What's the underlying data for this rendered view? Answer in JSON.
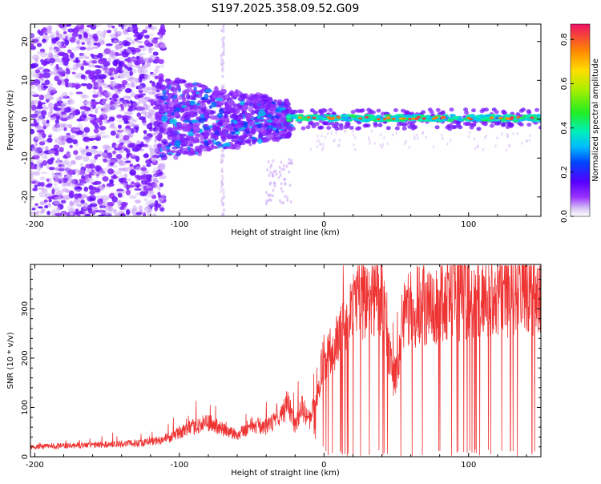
{
  "chart_data": [
    {
      "type": "heatmap",
      "title": "S197.2025.358.09.52.G09",
      "xlabel": "Height of straight line (km)",
      "ylabel": "Frequency (Hz)",
      "xlim": [
        -203,
        150
      ],
      "ylim": [
        -25,
        24.5
      ],
      "x_ticks": [
        -200,
        -100,
        0,
        100
      ],
      "y_ticks": [
        -20,
        -10,
        0,
        10,
        20
      ],
      "x_tick_labels": [
        "-200",
        "-100",
        "0",
        "100"
      ],
      "y_tick_labels": [
        "-20",
        "-10",
        "0",
        "10",
        "20"
      ],
      "colorbar": {
        "label": "Normalized spectral amplitude",
        "range": [
          0.0,
          0.87
        ],
        "ticks": [
          0.0,
          0.2,
          0.4,
          0.6,
          0.8
        ],
        "tick_labels": [
          "0.0",
          "0.2",
          "0.4",
          "0.6",
          "0.8"
        ]
      },
      "description_regions": [
        {
          "x_range": [
            -203,
            -115
          ],
          "freq_range": [
            -25,
            24.5
          ],
          "amplitude": 0.05,
          "pattern": "scattered noise"
        },
        {
          "x_range": [
            -115,
            -25
          ],
          "freq_range": [
            -8,
            8
          ],
          "amplitude": 0.12,
          "pattern": "broad energy"
        },
        {
          "x_range": [
            -25,
            150
          ],
          "freq_range": [
            -1,
            1.5
          ],
          "amplitude": 0.5,
          "pattern": "narrow carrier line near 0 Hz"
        }
      ]
    },
    {
      "type": "line",
      "xlabel": "Height of straight line (km)",
      "ylabel": "SNR (10 * v/v)",
      "xlim": [
        -203,
        150
      ],
      "ylim": [
        0,
        390
      ],
      "x_ticks": [
        -200,
        -100,
        0,
        100
      ],
      "y_ticks": [
        0,
        100,
        200,
        300
      ],
      "x_tick_labels": [
        "-200",
        "-100",
        "0",
        "100"
      ],
      "y_tick_labels": [
        "0",
        "100",
        "200",
        "300"
      ],
      "series": [
        {
          "name": "SNR",
          "color": "#ee3333",
          "x": [
            -203,
            -180,
            -160,
            -140,
            -120,
            -105,
            -100,
            -90,
            -80,
            -70,
            -60,
            -50,
            -40,
            -30,
            -25,
            -20,
            -15,
            -10,
            -5,
            0,
            5,
            10,
            15,
            20,
            25,
            30,
            35,
            40,
            45,
            48,
            50,
            55,
            60,
            65,
            70,
            80,
            90,
            100,
            110,
            120,
            130,
            140,
            150
          ],
          "values": [
            20,
            22,
            24,
            26,
            30,
            40,
            50,
            60,
            70,
            55,
            45,
            65,
            60,
            80,
            110,
            60,
            100,
            70,
            130,
            200,
            215,
            230,
            270,
            300,
            315,
            320,
            335,
            330,
            200,
            170,
            180,
            280,
            300,
            305,
            310,
            315,
            320,
            325,
            330,
            335,
            330,
            335,
            335
          ]
        }
      ],
      "dropouts": {
        "description": "frequent vertical drops to ~0 between 0 and 150 km",
        "x_range": [
          0,
          150
        ]
      }
    }
  ]
}
